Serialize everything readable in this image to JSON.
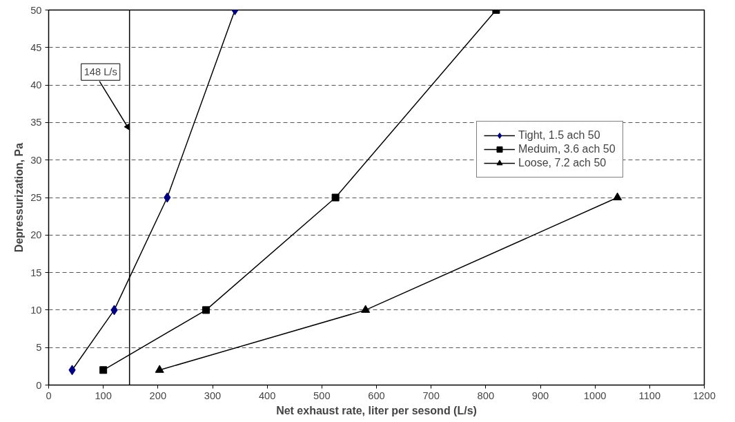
{
  "chart_data": {
    "type": "line",
    "xlabel": "Net exhaust rate, liter per sesond (L/s)",
    "ylabel": "Depressurization, Pa",
    "xlim": [
      0,
      1200
    ],
    "xticks": [
      0,
      100,
      200,
      300,
      400,
      500,
      600,
      700,
      800,
      900,
      1000,
      1100,
      1200
    ],
    "ylim": [
      0,
      50
    ],
    "yticks": [
      0,
      5,
      10,
      15,
      20,
      25,
      30,
      35,
      40,
      45,
      50
    ],
    "grid": "y",
    "legend": "right",
    "line_style": "solid",
    "series": [
      {
        "name": "Tight, 1.5 ach 50",
        "color": "#000080",
        "marker": "diamond",
        "x": [
          43,
          120,
          217,
          341
        ],
        "values": [
          2,
          10,
          25,
          50
        ]
      },
      {
        "name": "Meduim, 3.6 ach 50",
        "color": "#000000",
        "marker": "square",
        "x": [
          100,
          288,
          525,
          819
        ],
        "values": [
          2,
          10,
          25,
          50
        ]
      },
      {
        "name": "Loose, 7.2 ach 50",
        "color": "#000000",
        "marker": "triangle",
        "x": [
          203,
          580,
          1041
        ],
        "values": [
          2,
          10,
          25
        ]
      }
    ],
    "ref_lines": [
      {
        "axis": "x",
        "value": 148,
        "color": "#000000"
      }
    ],
    "annotations": [
      {
        "text": "148 L/s",
        "x": 148,
        "y": 34
      }
    ]
  }
}
